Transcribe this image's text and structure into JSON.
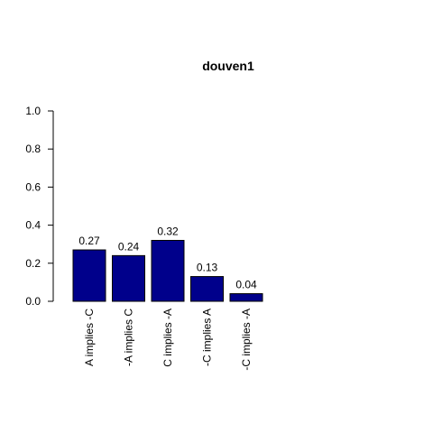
{
  "chart_data": {
    "type": "bar",
    "title": "douven1",
    "xlabel": "",
    "ylabel": "",
    "categories": [
      "A implies -C",
      "-A implies C",
      "C implies -A",
      "-C implies A",
      "-C implies -A"
    ],
    "values": [
      0.27,
      0.24,
      0.32,
      0.13,
      0.04
    ],
    "value_labels": [
      "0.27",
      "0.24",
      "0.32",
      "0.13",
      "0.04"
    ],
    "ylim": [
      0,
      1
    ],
    "yticks": [
      0,
      0.2,
      0.4,
      0.6,
      0.8,
      1.0
    ],
    "ytick_labels": [
      "0.0",
      "0.2",
      "0.4",
      "0.6",
      "0.8",
      "1.0"
    ],
    "bar_color": "#00008b",
    "grid": false,
    "legend": "none"
  }
}
